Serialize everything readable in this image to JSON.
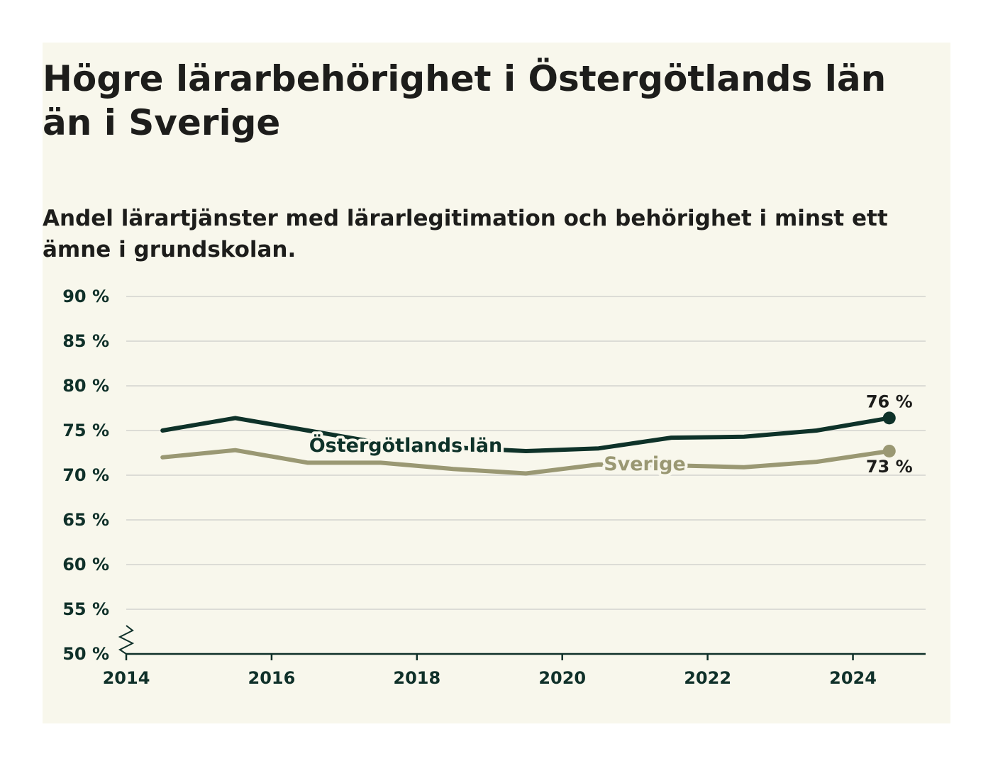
{
  "title": "Högre lärarbehörighet i Östergötlands län än i Sverige",
  "subtitle": "Andel lärartjänster med lärarlegitimation och behörighet i minst ett ämne i grundskolan.",
  "colors": {
    "background": "#f8f7ec",
    "ostergotland": "#0e3229",
    "sverige": "#9a9873",
    "grid": "#dcdcd6",
    "axis": "#0f3029"
  },
  "chart_data": {
    "type": "line",
    "title": "Högre lärarbehörighet i Östergötlands län än i Sverige",
    "subtitle": "Andel lärartjänster med lärarlegitimation och behörighet i minst ett ämne i grundskolan.",
    "xlabel": "",
    "ylabel": "",
    "x": [
      2014.5,
      2015.5,
      2016.5,
      2017.5,
      2018.5,
      2019.5,
      2020.5,
      2021.5,
      2022.5,
      2023.5,
      2024.5
    ],
    "xlim": [
      2014,
      2025
    ],
    "ylim": [
      50,
      90
    ],
    "x_ticks": [
      "2014",
      "2016",
      "2018",
      "2020",
      "2022",
      "2024"
    ],
    "x_tick_values": [
      2014,
      2016,
      2018,
      2020,
      2022,
      2024
    ],
    "y_ticks": [
      "50 %",
      "55 %",
      "60 %",
      "65 %",
      "70 %",
      "75 %",
      "80 %",
      "85 %",
      "90 %"
    ],
    "y_tick_values": [
      50,
      55,
      60,
      65,
      70,
      75,
      80,
      85,
      90
    ],
    "grid": true,
    "axis_break": true,
    "legend": "inline labels",
    "series": [
      {
        "name": "Östergötlands län",
        "values": [
          75.0,
          76.4,
          75.0,
          73.6,
          73.1,
          72.7,
          73.0,
          74.2,
          74.3,
          75.0,
          76.4
        ],
        "end_label": "76 %"
      },
      {
        "name": "Sverige",
        "values": [
          72.0,
          72.8,
          71.4,
          71.4,
          70.7,
          70.2,
          71.2,
          71.1,
          70.9,
          71.5,
          72.7
        ],
        "end_label": "73 %"
      }
    ]
  }
}
